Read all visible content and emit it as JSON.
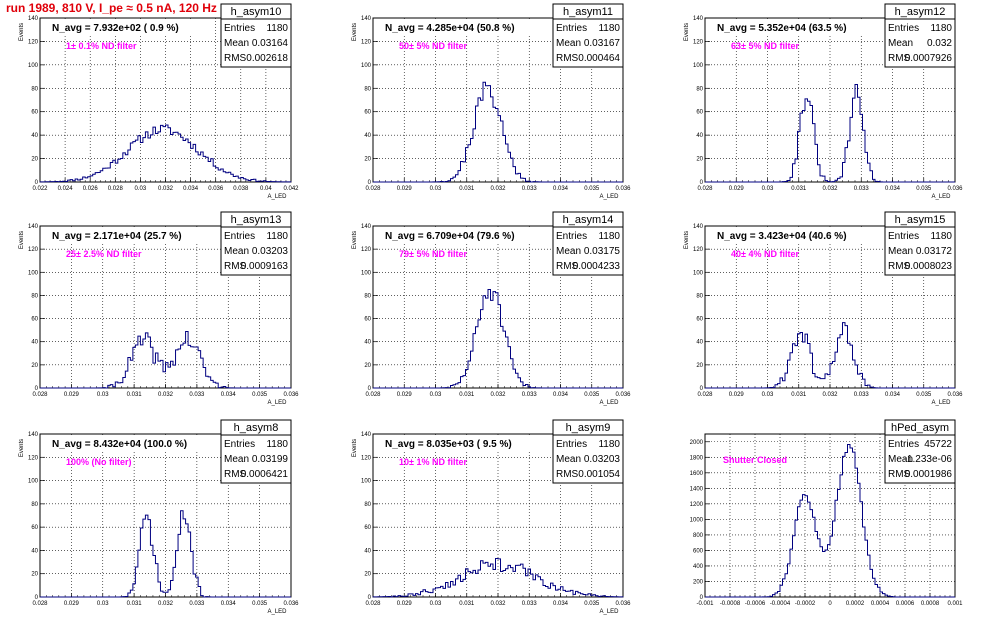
{
  "run_title": "run 1989,   810 V, I_pe ≈ 0.5 nA, 120 Hz",
  "stat_labels": {
    "entries": "Entries",
    "mean": "Mean",
    "rms": "RMS"
  },
  "chart_data": [
    {
      "type": "histogram",
      "name": "h_asym10",
      "annotation": "N_avg = 7.932e+02 ( 0.9 %)",
      "filter_label": "1± 0.1% ND filter",
      "stats": {
        "entries": "1180",
        "mean": "0.03164",
        "rms": "0.002618"
      },
      "xlabel": "A_LED",
      "ylabel": "Events",
      "xlim": [
        0.022,
        0.042
      ],
      "ylim": [
        0,
        140
      ],
      "x_ticks": [
        "0.022",
        "0.024",
        "0.026",
        "0.028",
        "0.03",
        "0.032",
        "0.034",
        "0.036",
        "0.038",
        "0.04",
        "0.042"
      ],
      "y_ticks": [
        0,
        20,
        40,
        60,
        80,
        100,
        120,
        140
      ],
      "grid": true,
      "shape": {
        "peaks": [
          [
            0.0318,
            45,
            0.0028
          ]
        ],
        "noise": 3,
        "seed": 11
      }
    },
    {
      "type": "histogram",
      "name": "h_asym11",
      "annotation": "N_avg = 4.285e+04 (50.8 %)",
      "filter_label": "50± 5% ND filter",
      "stats": {
        "entries": "1180",
        "mean": "0.03167",
        "rms": "0.000464"
      },
      "xlabel": "A_LED",
      "ylabel": "Events",
      "xlim": [
        0.028,
        0.036
      ],
      "ylim": [
        0,
        140
      ],
      "x_ticks": [
        "0.028",
        "0.029",
        "0.03",
        "0.031",
        "0.032",
        "0.033",
        "0.034",
        "0.035",
        "0.036"
      ],
      "y_ticks": [
        0,
        20,
        40,
        60,
        80,
        100,
        120,
        140
      ],
      "grid": true,
      "shape": {
        "peaks": [
          [
            0.03167,
            80,
            0.00045
          ]
        ],
        "noise": 6,
        "seed": 21
      }
    },
    {
      "type": "histogram",
      "name": "h_asym12",
      "annotation": "N_avg = 5.352e+04 (63.5 %)",
      "filter_label": "63± 5% ND filter",
      "stats": {
        "entries": "1180",
        "mean": "0.032",
        "rms": "0.0007926"
      },
      "xlabel": "A_LED",
      "ylabel": "Events",
      "xlim": [
        0.028,
        0.036
      ],
      "ylim": [
        0,
        140
      ],
      "x_ticks": [
        "0.028",
        "0.029",
        "0.03",
        "0.031",
        "0.032",
        "0.033",
        "0.034",
        "0.035",
        "0.036"
      ],
      "y_ticks": [
        0,
        20,
        40,
        60,
        80,
        100,
        120,
        140
      ],
      "grid": true,
      "shape": {
        "peaks": [
          [
            0.03125,
            75,
            0.00022
          ],
          [
            0.03285,
            75,
            0.00022
          ]
        ],
        "noise": 6,
        "seed": 31
      }
    },
    {
      "type": "histogram",
      "name": "h_asym13",
      "annotation": "N_avg = 2.171e+04 (25.7 %)",
      "filter_label": "25± 2.5% ND filter",
      "stats": {
        "entries": "1180",
        "mean": "0.03203",
        "rms": "0.0009163"
      },
      "xlabel": "A_LED",
      "ylabel": "Events",
      "xlim": [
        0.028,
        0.036
      ],
      "ylim": [
        0,
        140
      ],
      "x_ticks": [
        "0.028",
        "0.029",
        "0.03",
        "0.031",
        "0.032",
        "0.033",
        "0.034",
        "0.035",
        "0.036"
      ],
      "y_ticks": [
        0,
        20,
        40,
        60,
        80,
        100,
        120,
        140
      ],
      "grid": true,
      "shape": {
        "peaks": [
          [
            0.0313,
            40,
            0.0004
          ],
          [
            0.0327,
            42,
            0.0004
          ]
        ],
        "noise": 6,
        "seed": 41
      }
    },
    {
      "type": "histogram",
      "name": "h_asym14",
      "annotation": "N_avg = 6.709e+04 (79.6 %)",
      "filter_label": "79± 5% ND filter",
      "stats": {
        "entries": "1180",
        "mean": "0.03175",
        "rms": "0.0004233"
      },
      "xlabel": "A_LED",
      "ylabel": "Events",
      "xlim": [
        0.028,
        0.036
      ],
      "ylim": [
        0,
        140
      ],
      "x_ticks": [
        "0.028",
        "0.029",
        "0.03",
        "0.031",
        "0.032",
        "0.033",
        "0.034",
        "0.035",
        "0.036"
      ],
      "y_ticks": [
        0,
        20,
        40,
        60,
        80,
        100,
        120,
        140
      ],
      "grid": true,
      "shape": {
        "peaks": [
          [
            0.03175,
            85,
            0.00042
          ]
        ],
        "noise": 7,
        "seed": 51
      }
    },
    {
      "type": "histogram",
      "name": "h_asym15",
      "annotation": "N_avg = 3.423e+04 (40.6 %)",
      "filter_label": "40± 4% ND filter",
      "stats": {
        "entries": "1180",
        "mean": "0.03172",
        "rms": "0.0008023"
      },
      "xlabel": "A_LED",
      "ylabel": "Events",
      "xlim": [
        0.028,
        0.036
      ],
      "ylim": [
        0,
        140
      ],
      "x_ticks": [
        "0.028",
        "0.029",
        "0.03",
        "0.031",
        "0.032",
        "0.033",
        "0.034",
        "0.035",
        "0.036"
      ],
      "y_ticks": [
        0,
        20,
        40,
        60,
        80,
        100,
        120,
        140
      ],
      "grid": true,
      "shape": {
        "peaks": [
          [
            0.03105,
            48,
            0.0003
          ],
          [
            0.03245,
            50,
            0.0003
          ]
        ],
        "noise": 6,
        "seed": 61
      }
    },
    {
      "type": "histogram",
      "name": "h_asym8",
      "annotation": "N_avg = 8.432e+04 (100.0 %)",
      "filter_label": "100% (No filter)",
      "stats": {
        "entries": "1180",
        "mean": "0.03199",
        "rms": "0.0006421"
      },
      "xlabel": "A_LED",
      "ylabel": "Events",
      "xlim": [
        0.028,
        0.036
      ],
      "ylim": [
        0,
        140
      ],
      "x_ticks": [
        "0.028",
        "0.029",
        "0.03",
        "0.031",
        "0.032",
        "0.033",
        "0.034",
        "0.035",
        "0.036"
      ],
      "y_ticks": [
        0,
        20,
        40,
        60,
        80,
        100,
        120,
        140
      ],
      "grid": true,
      "shape": {
        "peaks": [
          [
            0.0314,
            68,
            0.00022
          ],
          [
            0.0326,
            70,
            0.00022
          ]
        ],
        "noise": 6,
        "seed": 71
      }
    },
    {
      "type": "histogram",
      "name": "h_asym9",
      "annotation": "N_avg = 8.035e+03 ( 9.5 %)",
      "filter_label": "10± 1% ND filter",
      "stats": {
        "entries": "1180",
        "mean": "0.03203",
        "rms": "0.001054"
      },
      "xlabel": "A_LED",
      "ylabel": "Events",
      "xlim": [
        0.028,
        0.036
      ],
      "ylim": [
        0,
        140
      ],
      "x_ticks": [
        "0.028",
        "0.029",
        "0.03",
        "0.031",
        "0.032",
        "0.033",
        "0.034",
        "0.035",
        "0.036"
      ],
      "y_ticks": [
        0,
        20,
        40,
        60,
        80,
        100,
        120,
        140
      ],
      "grid": true,
      "shape": {
        "peaks": [
          [
            0.032,
            28,
            0.0012
          ]
        ],
        "noise": 4,
        "seed": 81
      }
    },
    {
      "type": "histogram",
      "name": "hPed_asym",
      "annotation": "",
      "filter_label": "Shutter Closed",
      "stats": {
        "entries": "45722",
        "mean": "-1.233e-06",
        "rms": "0.0001986"
      },
      "xlabel": "",
      "ylabel": "",
      "xlim": [
        -0.001,
        0.001
      ],
      "ylim": [
        0,
        2100
      ],
      "x_ticks": [
        "-0.001",
        "-0.0008",
        "-0.0006",
        "-0.0004",
        "-0.0002",
        "0",
        "0.0002",
        "0.0004",
        "0.0006",
        "0.0008",
        "0.001"
      ],
      "y_ticks": [
        0,
        200,
        400,
        600,
        800,
        1000,
        1200,
        1400,
        1600,
        1800,
        2000
      ],
      "grid": true,
      "shape": {
        "peaks": [
          [
            -0.0002,
            1300,
            9e-05
          ],
          [
            0.00015,
            1950,
            0.0001
          ]
        ],
        "noise": 40,
        "seed": 91
      }
    }
  ]
}
